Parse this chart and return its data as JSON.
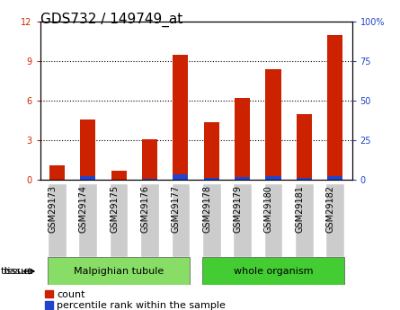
{
  "title": "GDS732 / 149749_at",
  "categories": [
    "GSM29173",
    "GSM29174",
    "GSM29175",
    "GSM29176",
    "GSM29177",
    "GSM29178",
    "GSM29179",
    "GSM29180",
    "GSM29181",
    "GSM29182"
  ],
  "count_values": [
    1.1,
    4.6,
    0.7,
    3.1,
    9.5,
    4.4,
    6.2,
    8.4,
    5.0,
    11.0
  ],
  "percentile_values": [
    0.1,
    2.2,
    0.1,
    0.5,
    3.3,
    1.2,
    1.7,
    2.1,
    1.2,
    2.5
  ],
  "bar_color": "#cc2200",
  "blue_color": "#2244cc",
  "ylim_left": [
    0,
    12
  ],
  "ylim_right": [
    0,
    100
  ],
  "yticks_left": [
    0,
    3,
    6,
    9,
    12
  ],
  "yticks_right": [
    0,
    25,
    50,
    75,
    100
  ],
  "ylabel_left_color": "#cc2200",
  "ylabel_right_color": "#2244cc",
  "grid_color": "#000000",
  "tissue_groups": [
    {
      "label": "Malpighian tubule",
      "indices": [
        0,
        1,
        2,
        3,
        4
      ],
      "color": "#88dd66"
    },
    {
      "label": "whole organism",
      "indices": [
        5,
        6,
        7,
        8,
        9
      ],
      "color": "#44cc33"
    }
  ],
  "tissue_label": "tissue",
  "legend_count_label": "count",
  "legend_percentile_label": "percentile rank within the sample",
  "bar_width": 0.5,
  "bg_plot": "#ffffff",
  "bg_xticklabels": "#cccccc",
  "title_fontsize": 11,
  "tick_fontsize": 7,
  "label_fontsize": 8
}
